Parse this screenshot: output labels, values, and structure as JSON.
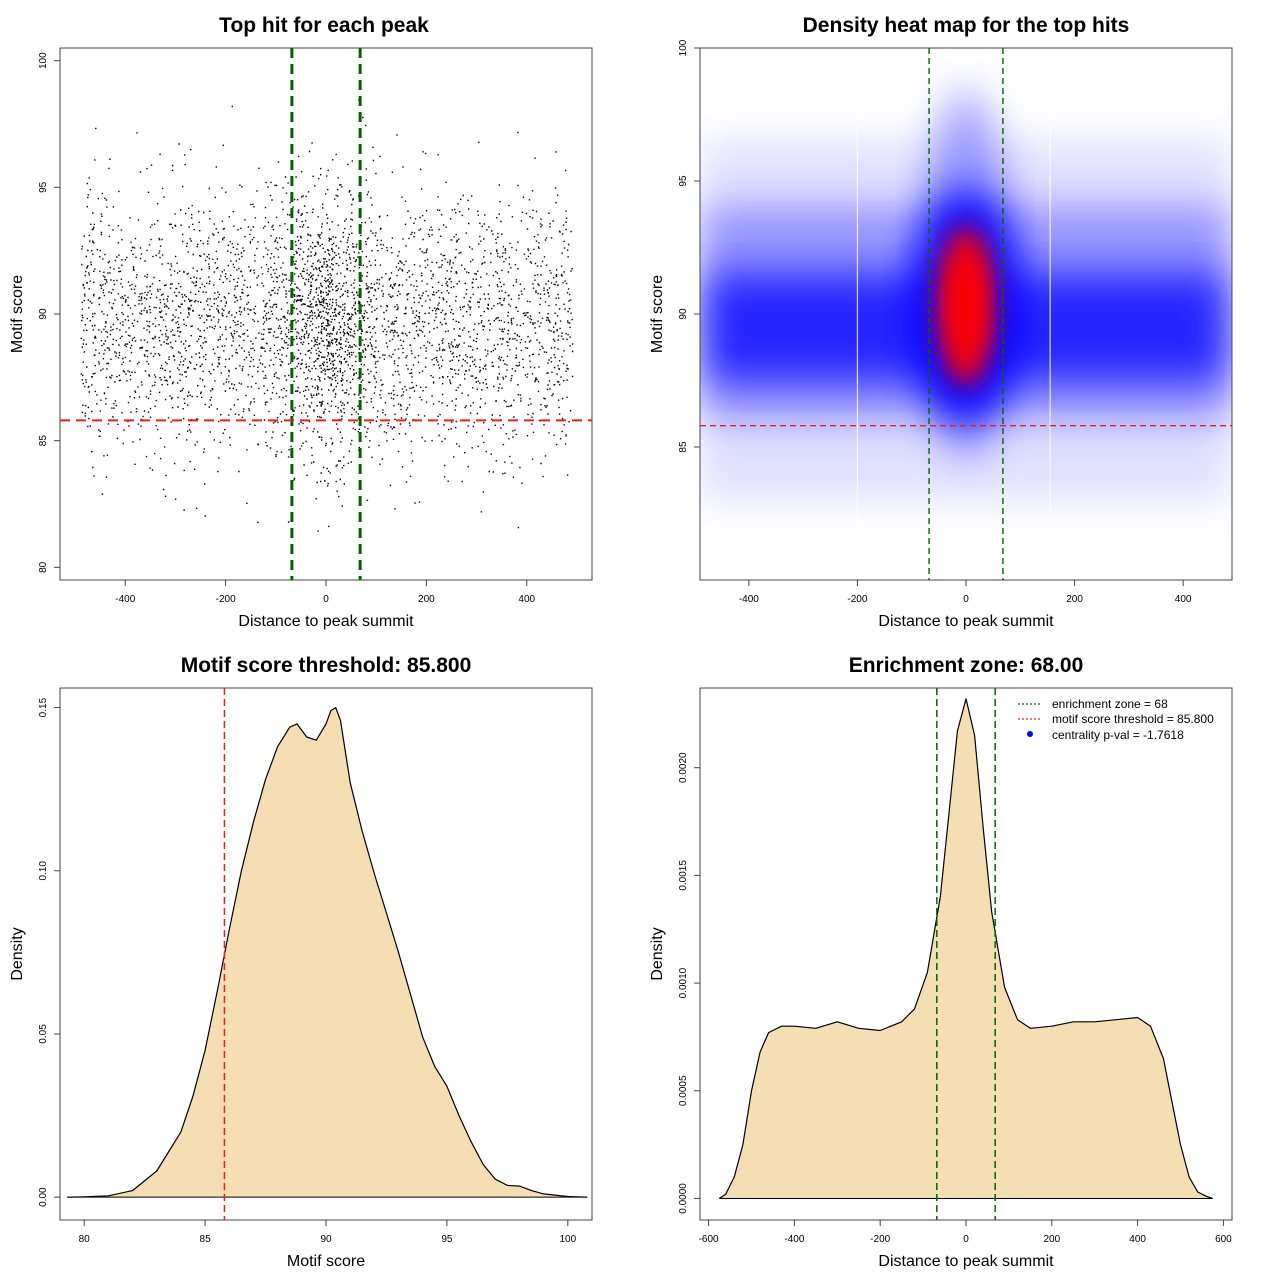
{
  "chart_data": [
    {
      "id": "scatter",
      "type": "scatter",
      "title": "Top hit for each peak",
      "xlabel": "Distance to peak summit",
      "ylabel": "Motif score",
      "xlim": [
        -530,
        530
      ],
      "ylim": [
        79.5,
        100.5
      ],
      "xticks": [
        -400,
        -200,
        0,
        200,
        400
      ],
      "yticks": [
        80,
        85,
        90,
        95,
        100
      ],
      "x_range_of_points": [
        -490,
        490
      ],
      "score_mean": 89.6,
      "score_sd": 2.6,
      "enrichment_zone": 68,
      "threshold": 85.8,
      "colors": {
        "points": "#000000",
        "zone": "#006400",
        "threshold": "#e8201c"
      }
    },
    {
      "id": "heatmap",
      "type": "heatmap",
      "title": "Density heat map for the top hits",
      "xlabel": "Distance to peak summit",
      "ylabel": "Motif score",
      "xlim": [
        -490,
        490
      ],
      "ylim": [
        80,
        100
      ],
      "xticks": [
        -400,
        -200,
        0,
        200,
        400
      ],
      "yticks": [
        85,
        90,
        95,
        100
      ],
      "peak_center": [
        0,
        90.3
      ],
      "enrichment_zone": 68,
      "threshold": 85.8,
      "colors": {
        "low": "#ffffff",
        "mid": "#0000ff",
        "high": "#ff0000",
        "zone": "#006400",
        "threshold": "#e8201c"
      }
    },
    {
      "id": "score_density",
      "type": "area",
      "title": "Motif score threshold: 85.800",
      "xlabel": "Motif score",
      "ylabel": "Density",
      "xlim": [
        79,
        101
      ],
      "ylim": [
        -0.007,
        0.156
      ],
      "xticks": [
        80,
        85,
        90,
        95,
        100
      ],
      "yticks": [
        0.0,
        0.05,
        0.1,
        0.15
      ],
      "ytick_labels": [
        "0.00",
        "0.05",
        "0.10",
        "0.15"
      ],
      "x": [
        79.3,
        80,
        81,
        82,
        83,
        83.5,
        84,
        84.5,
        85,
        85.5,
        86,
        86.5,
        87,
        87.5,
        88,
        88.5,
        88.8,
        89.2,
        89.6,
        90,
        90.2,
        90.4,
        90.6,
        91,
        91.5,
        92,
        92.5,
        93,
        93.5,
        94,
        94.5,
        95,
        95.5,
        96,
        96.5,
        97,
        97.5,
        98,
        98.5,
        99,
        100,
        100.8
      ],
      "values": [
        0,
        0.0001,
        0.0004,
        0.002,
        0.008,
        0.014,
        0.02,
        0.031,
        0.045,
        0.063,
        0.082,
        0.1,
        0.115,
        0.128,
        0.138,
        0.144,
        0.145,
        0.141,
        0.14,
        0.145,
        0.149,
        0.15,
        0.146,
        0.127,
        0.112,
        0.099,
        0.087,
        0.075,
        0.062,
        0.049,
        0.04,
        0.034,
        0.025,
        0.017,
        0.01,
        0.0055,
        0.0036,
        0.0034,
        0.002,
        0.001,
        0.0002,
        0
      ],
      "threshold": 85.8,
      "colors": {
        "fill": "#f5deb3",
        "line": "#000000",
        "threshold": "#e8201c"
      }
    },
    {
      "id": "distance_density",
      "type": "area",
      "title": "Enrichment zone: 68.00",
      "xlabel": "Distance to peak summit",
      "ylabel": "Density",
      "xlim": [
        -620,
        620
      ],
      "ylim": [
        -0.0001,
        0.00237
      ],
      "xticks": [
        -600,
        -400,
        -200,
        0,
        200,
        400,
        600
      ],
      "yticks": [
        0,
        0.0005,
        0.001,
        0.0015,
        0.002
      ],
      "ytick_labels": [
        "0.0000",
        "0.0005",
        "0.0010",
        "0.0015",
        "0.0020"
      ],
      "x": [
        -575,
        -560,
        -540,
        -520,
        -500,
        -480,
        -460,
        -430,
        -400,
        -350,
        -300,
        -250,
        -200,
        -150,
        -120,
        -90,
        -60,
        -40,
        -20,
        0,
        20,
        40,
        60,
        90,
        120,
        150,
        200,
        250,
        300,
        350,
        400,
        430,
        460,
        480,
        500,
        520,
        540,
        560,
        575
      ],
      "values": [
        0,
        2e-05,
        0.0001,
        0.00025,
        0.0005,
        0.00068,
        0.00077,
        0.0008,
        0.0008,
        0.00079,
        0.00082,
        0.00079,
        0.00078,
        0.00082,
        0.00088,
        0.00105,
        0.0014,
        0.00178,
        0.00217,
        0.00232,
        0.00215,
        0.00172,
        0.00133,
        0.00098,
        0.00083,
        0.00079,
        0.0008,
        0.00082,
        0.00082,
        0.00083,
        0.00084,
        0.0008,
        0.00065,
        0.00045,
        0.00025,
        0.0001,
        3e-05,
        1e-05,
        0
      ],
      "enrichment_zone": 68,
      "colors": {
        "fill": "#f5deb3",
        "line": "#000000",
        "zone": "#006400"
      },
      "legend": {
        "position": "top-right",
        "entries": [
          {
            "label": "enrichment zone = 68",
            "color": "#006400",
            "style": "dotted-line"
          },
          {
            "label": "motif score threshold = 85.800",
            "color": "#e8201c",
            "style": "dotted-line"
          },
          {
            "label": "centrality p-val = -1.7618",
            "color": "#0000ff",
            "style": "point"
          }
        ]
      }
    }
  ]
}
